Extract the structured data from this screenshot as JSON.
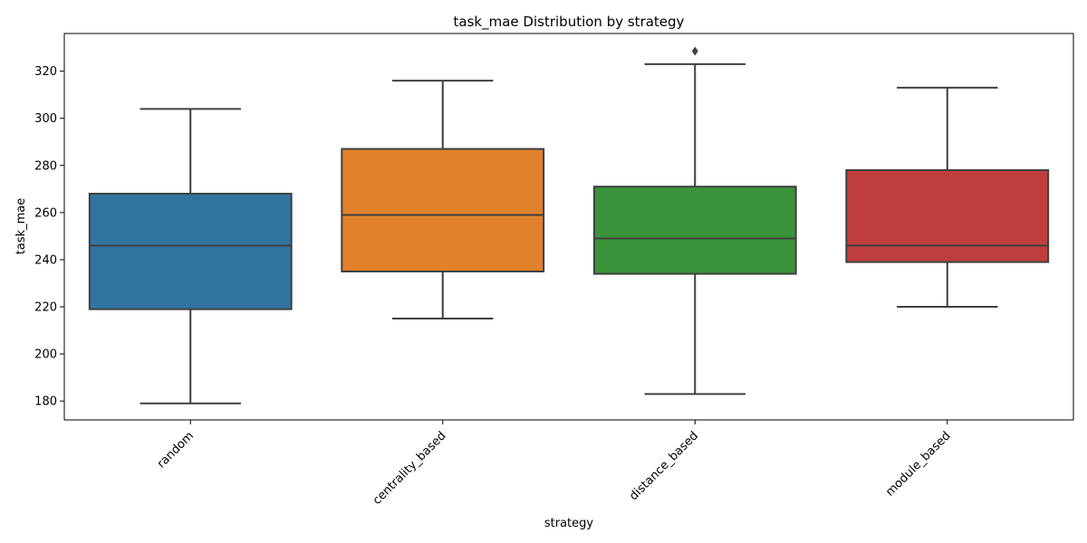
{
  "chart_data": {
    "type": "box",
    "title": "task_mae Distribution by strategy",
    "xlabel": "strategy",
    "ylabel": "task_mae",
    "ylim": [
      172,
      336
    ],
    "yticks": [
      180,
      200,
      220,
      240,
      260,
      280,
      300,
      320
    ],
    "grid": false,
    "legend": "none",
    "categories": [
      "random",
      "centrality_based",
      "distance_based",
      "module_based"
    ],
    "colors": [
      "#3274a1",
      "#e1812c",
      "#3a923a",
      "#c03d3e"
    ],
    "boxes": [
      {
        "name": "random",
        "whisker_low": 179,
        "q1": 219,
        "median": 246,
        "q3": 268,
        "whisker_high": 304,
        "outliers": []
      },
      {
        "name": "centrality_based",
        "whisker_low": 215,
        "q1": 235,
        "median": 259,
        "q3": 287,
        "whisker_high": 316,
        "outliers": []
      },
      {
        "name": "distance_based",
        "whisker_low": 183,
        "q1": 234,
        "median": 249,
        "q3": 271,
        "whisker_high": 323,
        "outliers": [
          328.5
        ]
      },
      {
        "name": "module_based",
        "whisker_low": 220,
        "q1": 239,
        "median": 246,
        "q3": 278,
        "whisker_high": 313,
        "outliers": []
      }
    ]
  }
}
